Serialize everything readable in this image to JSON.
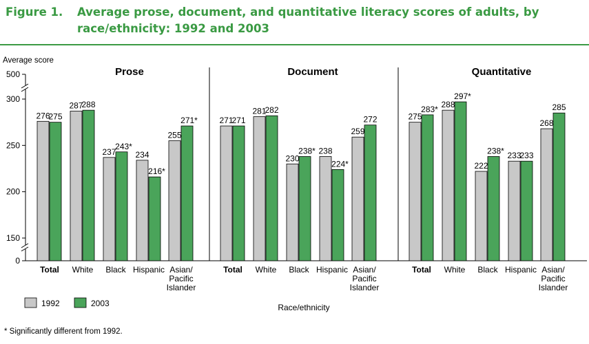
{
  "figure": {
    "label": "Figure 1.",
    "title_line1": "Average prose, document, and quantitative literacy scores of adults, by",
    "title_line2": "race/ethnicity: 1992 and 2003"
  },
  "footnote": "* Significantly different from 1992.",
  "colors": {
    "y1992": "#c8c8c8",
    "y2003": "#4aa45a",
    "title": "#3a9a43"
  },
  "chart_data": {
    "type": "bar",
    "ylabel": "Average score",
    "xlabel": "Race/ethnicity",
    "yticks": [
      0,
      150,
      200,
      250,
      300,
      500
    ],
    "axis_break": true,
    "legend": {
      "position": "bottom-left",
      "entries": [
        "1992",
        "2003"
      ]
    },
    "categories": [
      "Total",
      "White",
      "Black",
      "Hispanic",
      "Asian/\nPacific\nIslander"
    ],
    "panels": [
      {
        "title": "Prose",
        "series": [
          {
            "name": "1992",
            "values": [
              276,
              287,
              237,
              234,
              255
            ],
            "labels": [
              "276",
              "287",
              "237",
              "234",
              "255"
            ]
          },
          {
            "name": "2003",
            "values": [
              275,
              288,
              243,
              216,
              271
            ],
            "labels": [
              "275",
              "288",
              "243*",
              "216*",
              "271*"
            ]
          }
        ]
      },
      {
        "title": "Document",
        "series": [
          {
            "name": "1992",
            "values": [
              271,
              281,
              230,
              238,
              259
            ],
            "labels": [
              "271",
              "281",
              "230",
              "238",
              "259"
            ]
          },
          {
            "name": "2003",
            "values": [
              271,
              282,
              238,
              224,
              272
            ],
            "labels": [
              "271",
              "282",
              "238*",
              "224*",
              "272"
            ]
          }
        ]
      },
      {
        "title": "Quantitative",
        "series": [
          {
            "name": "1992",
            "values": [
              275,
              288,
              222,
              233,
              268
            ],
            "labels": [
              "275",
              "288",
              "222",
              "233",
              "268"
            ]
          },
          {
            "name": "2003",
            "values": [
              283,
              297,
              238,
              233,
              285
            ],
            "labels": [
              "283*",
              "297*",
              "238*",
              "233",
              "285"
            ]
          }
        ]
      }
    ]
  }
}
